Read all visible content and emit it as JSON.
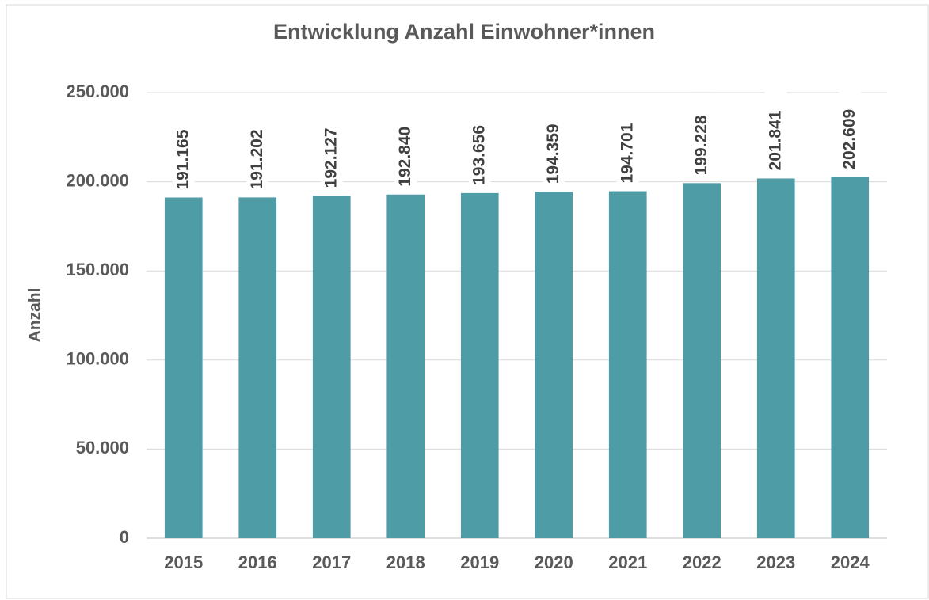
{
  "chart_data": {
    "type": "bar",
    "title": "Entwicklung Anzahl Einwohner*innen",
    "y_label": "Anzahl",
    "categories": [
      "2015",
      "2016",
      "2017",
      "2018",
      "2019",
      "2020",
      "2021",
      "2022",
      "2023",
      "2024"
    ],
    "values": [
      191165,
      191202,
      192127,
      192840,
      193656,
      194359,
      194701,
      199228,
      201841,
      202609
    ],
    "value_labels": [
      "191.165",
      "191.202",
      "192.127",
      "192.840",
      "193.656",
      "194.359",
      "194.701",
      "199.228",
      "201.841",
      "202.609"
    ],
    "color": "#4e9ca6",
    "ylim": [
      0,
      250000
    ],
    "yticks": [
      0,
      {
        "value": 50000,
        "label": "50.000"
      },
      {
        "value": 100000,
        "label": "100.000"
      },
      {
        "value": 150000,
        "label": "150.000"
      },
      {
        "value": 200000,
        "label": "200.000"
      },
      {
        "value": 250000,
        "label": "250.000"
      }
    ],
    "grid": true
  }
}
